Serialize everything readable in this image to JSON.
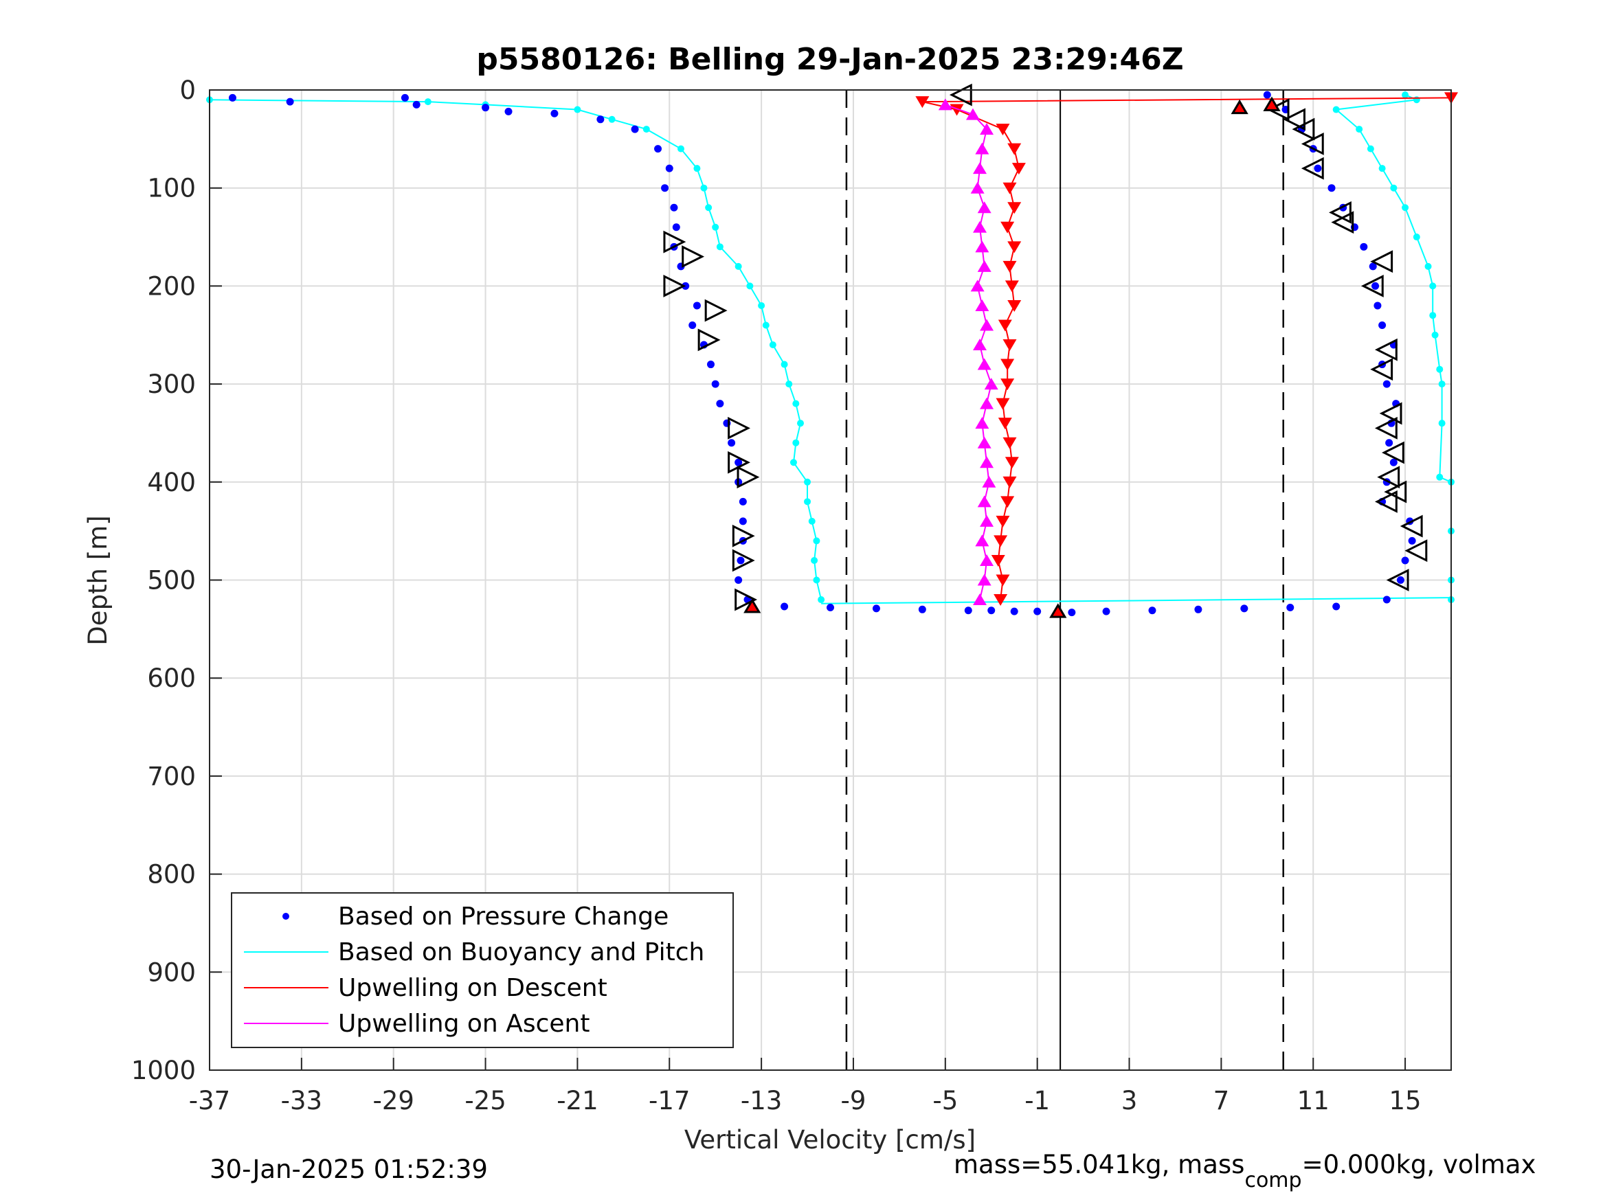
{
  "chart_data": {
    "type": "scatter",
    "title": "p5580126: Belling 29-Jan-2025 23:29:46Z",
    "xlabel": "Vertical Velocity [cm/s]",
    "ylabel": "Depth [m]",
    "xlim": [
      -37,
      17
    ],
    "ylim": [
      0,
      1000
    ],
    "y_reversed": true,
    "grid": true,
    "xticks": [
      -37,
      -33,
      -29,
      -25,
      -21,
      -17,
      -13,
      -9,
      -5,
      -1,
      3,
      7,
      11,
      15
    ],
    "yticks": [
      0,
      100,
      200,
      300,
      400,
      500,
      600,
      700,
      800,
      900,
      1000
    ],
    "reference_lines": {
      "dashed": [
        -9.3,
        9.7
      ],
      "solid": [
        0
      ]
    },
    "legend": {
      "position": "bottom-left",
      "entries": [
        {
          "label": "Based on Pressure Change",
          "color": "#0000ff",
          "marker": "dot"
        },
        {
          "label": "Based on Buoyancy and Pitch",
          "color": "#00ffff",
          "marker": "line"
        },
        {
          "label": "Upwelling on Descent",
          "color": "#ff0000",
          "marker": "line"
        },
        {
          "label": "Upwelling on Ascent",
          "color": "#ff00ff",
          "marker": "line"
        }
      ]
    },
    "series": [
      {
        "name": "Based on Pressure Change",
        "color": "#0000ff",
        "descent": {
          "depth": [
            8,
            12,
            8,
            15,
            18,
            22,
            24,
            30,
            40,
            60,
            80,
            100,
            120,
            140,
            160,
            180,
            200,
            220,
            240,
            260,
            280,
            300,
            320,
            340,
            360,
            380,
            400,
            420,
            440,
            460,
            480,
            500,
            520
          ],
          "velocity": [
            -36,
            -33.5,
            -28.5,
            -28,
            -25,
            -24,
            -22,
            -20,
            -18.5,
            -17.5,
            -17,
            -17.2,
            -16.8,
            -16.7,
            -16.8,
            -16.5,
            -16.3,
            -15.8,
            -16.0,
            -15.5,
            -15.2,
            -15.0,
            -14.8,
            -14.5,
            -14.3,
            -14.0,
            -14.0,
            -13.8,
            -13.8,
            -13.8,
            -13.9,
            -14.0,
            -13.6
          ]
        },
        "ascent": {
          "depth": [
            520,
            500,
            480,
            460,
            440,
            420,
            400,
            380,
            360,
            340,
            320,
            300,
            280,
            260,
            240,
            220,
            200,
            180,
            160,
            140,
            120,
            100,
            80,
            60,
            40,
            20,
            5
          ],
          "velocity": [
            14.2,
            14.8,
            15.0,
            15.3,
            15.2,
            14.0,
            14.2,
            14.5,
            14.3,
            14.4,
            14.6,
            14.2,
            14.0,
            14.5,
            14.0,
            13.8,
            13.7,
            13.6,
            13.2,
            12.8,
            12.3,
            11.8,
            11.2,
            11.0,
            10.5,
            9.8,
            9.0
          ]
        },
        "bottom_transition": {
          "depth": [
            527,
            528,
            529,
            530,
            531,
            531,
            532,
            532,
            533,
            532,
            531,
            530,
            529,
            528,
            527
          ],
          "velocity": [
            -12,
            -10,
            -8,
            -6,
            -4,
            -3,
            -2,
            -1,
            0.5,
            2,
            4,
            6,
            8,
            10,
            12
          ]
        }
      },
      {
        "name": "Based on Buoyancy and Pitch",
        "color": "#00ffff",
        "descent": {
          "depth": [
            10,
            12,
            15,
            20,
            30,
            40,
            60,
            80,
            100,
            120,
            140,
            160,
            180,
            200,
            220,
            240,
            260,
            280,
            300,
            320,
            340,
            360,
            380,
            400,
            420,
            440,
            460,
            480,
            500,
            520
          ],
          "velocity": [
            -37,
            -27.5,
            -25,
            -21,
            -19.5,
            -18,
            -16.5,
            -15.8,
            -15.5,
            -15.3,
            -15.0,
            -14.8,
            -14.0,
            -13.5,
            -13.0,
            -12.8,
            -12.5,
            -12.0,
            -11.8,
            -11.5,
            -11.3,
            -11.5,
            -11.6,
            -11.0,
            -11.0,
            -10.8,
            -10.6,
            -10.7,
            -10.6,
            -10.4
          ]
        },
        "ascent": {
          "depth": [
            520,
            500,
            450,
            400,
            395,
            340,
            300,
            285,
            250,
            230,
            200,
            180,
            150,
            120,
            100,
            80,
            60,
            40,
            20,
            10,
            5
          ],
          "velocity": [
            17,
            17,
            17,
            17,
            16.5,
            16.6,
            16.6,
            16.5,
            16.3,
            16.2,
            16.2,
            16.0,
            15.5,
            15.0,
            14.5,
            14.0,
            13.5,
            13.0,
            12.0,
            15.5,
            15.0
          ]
        }
      },
      {
        "name": "Upwelling on Descent",
        "color": "#ff0000",
        "depth": [
          8,
          12,
          20,
          40,
          60,
          80,
          100,
          120,
          140,
          160,
          180,
          200,
          220,
          240,
          260,
          280,
          300,
          320,
          340,
          360,
          380,
          400,
          420,
          440,
          460,
          480,
          500,
          520
        ],
        "velocity": [
          17,
          -6.0,
          -4.5,
          -2.5,
          -2.0,
          -1.8,
          -2.2,
          -2.0,
          -2.3,
          -2.0,
          -2.2,
          -2.1,
          -2.0,
          -2.4,
          -2.2,
          -2.3,
          -2.3,
          -2.5,
          -2.4,
          -2.2,
          -2.1,
          -2.2,
          -2.3,
          -2.5,
          -2.6,
          -2.7,
          -2.5,
          -2.6
        ]
      },
      {
        "name": "Upwelling on Ascent",
        "color": "#ff00ff",
        "depth": [
          520,
          500,
          480,
          460,
          440,
          420,
          400,
          380,
          360,
          340,
          320,
          300,
          280,
          260,
          240,
          220,
          200,
          180,
          160,
          140,
          120,
          100,
          80,
          60,
          40,
          25,
          15
        ],
        "velocity": [
          -3.5,
          -3.3,
          -3.2,
          -3.4,
          -3.2,
          -3.3,
          -3.1,
          -3.2,
          -3.3,
          -3.4,
          -3.2,
          -3.0,
          -3.3,
          -3.5,
          -3.2,
          -3.4,
          -3.6,
          -3.3,
          -3.4,
          -3.5,
          -3.3,
          -3.6,
          -3.5,
          -3.4,
          -3.2,
          -3.8,
          -5.0
        ]
      }
    ],
    "event_markers": {
      "left_descent": {
        "depth": [
          155,
          170,
          200,
          225,
          255,
          345,
          380,
          395,
          455,
          480,
          520
        ],
        "velocity": [
          -16.8,
          -16.0,
          -16.8,
          -15.0,
          -15.3,
          -14.0,
          -14.0,
          -13.6,
          -13.8,
          -13.8,
          -13.7
        ]
      },
      "left_ascent": {
        "depth": [
          5,
          20,
          30,
          40,
          55,
          80,
          125,
          135,
          175,
          200,
          265,
          285,
          330,
          345,
          370,
          395,
          410,
          420,
          445,
          470,
          500
        ],
        "velocity": [
          -4.3,
          9.5,
          10.2,
          10.6,
          11.0,
          11.0,
          12.2,
          12.3,
          14.0,
          13.6,
          14.2,
          14.0,
          14.4,
          14.2,
          14.5,
          14.3,
          14.6,
          14.2,
          15.3,
          15.5,
          14.7
        ]
      }
    },
    "footer_left": "30-Jan-2025 01:52:39",
    "footer_right_prefix": "mass=55.041kg, mass",
    "footer_right_sub": "comp",
    "footer_right_suffix": "=0.000kg, volmax"
  }
}
